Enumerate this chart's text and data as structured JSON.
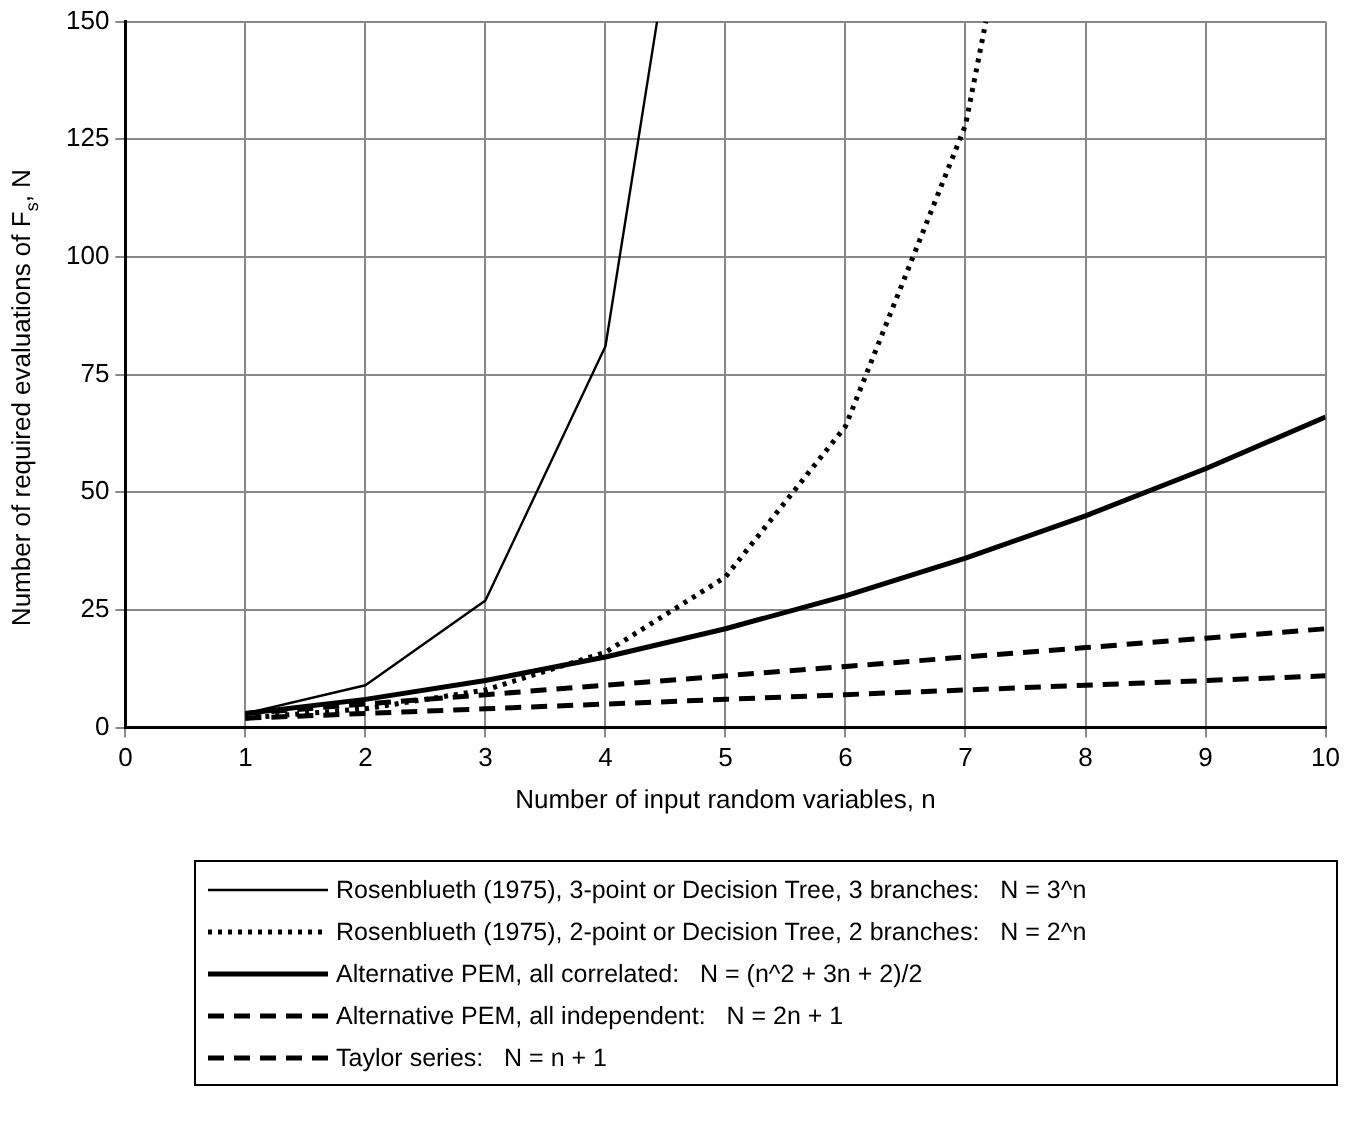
{
  "chart_data": {
    "type": "line",
    "xlabel": "Number of input random variables, n",
    "ylabel": "Number of required evaluations of F$_{s}$, N",
    "xlim": [
      0,
      10
    ],
    "xticks": [
      0,
      1,
      2,
      3,
      4,
      5,
      6,
      7,
      8,
      9,
      10
    ],
    "ylim": [
      0,
      150
    ],
    "yticks": [
      0,
      25,
      50,
      75,
      100,
      125,
      150
    ],
    "grid": true,
    "legend": "bottom",
    "marker": "none",
    "series": [
      {
        "name": "Rosenblueth (1975), 3-point or Decision Tree, 3 branches:   N = 3^n",
        "color": "#000000",
        "line_style": "solid",
        "x": [
          1,
          2,
          3,
          4,
          4.43
        ],
        "values": [
          3,
          9,
          27,
          81,
          150
        ]
      },
      {
        "name": "Rosenblueth (1975), 2-point or Decision Tree, 2 branches:   N = 2^n",
        "color": "#000000",
        "line_style": "dotted",
        "x": [
          1,
          2,
          3,
          4,
          5,
          6,
          7,
          7.17
        ],
        "values": [
          2,
          4,
          8,
          16,
          32,
          64,
          128,
          150
        ]
      },
      {
        "name": "Alternative PEM, all correlated:   N = (n^2 + 3n + 2)/2",
        "color": "#000000",
        "line_style": "solid",
        "x": [
          1,
          2,
          3,
          4,
          5,
          6,
          7,
          8,
          9,
          10
        ],
        "values": [
          3,
          6,
          10,
          15,
          21,
          28,
          36,
          45,
          55,
          66
        ]
      },
      {
        "name": "Alternative PEM, all independent:   N = 2n + 1",
        "color": "#000000",
        "line_style": "dashed",
        "x": [
          1,
          2,
          3,
          4,
          5,
          6,
          7,
          8,
          9,
          10
        ],
        "values": [
          3,
          5,
          7,
          9,
          11,
          13,
          15,
          17,
          19,
          21
        ]
      },
      {
        "name": "Taylor series:   N = n + 1",
        "color": "#000000",
        "line_style": "dashed",
        "x": [
          1,
          2,
          3,
          4,
          5,
          6,
          7,
          8,
          9,
          10
        ],
        "values": [
          2,
          3,
          4,
          5,
          6,
          7,
          8,
          9,
          10,
          11
        ]
      }
    ]
  }
}
